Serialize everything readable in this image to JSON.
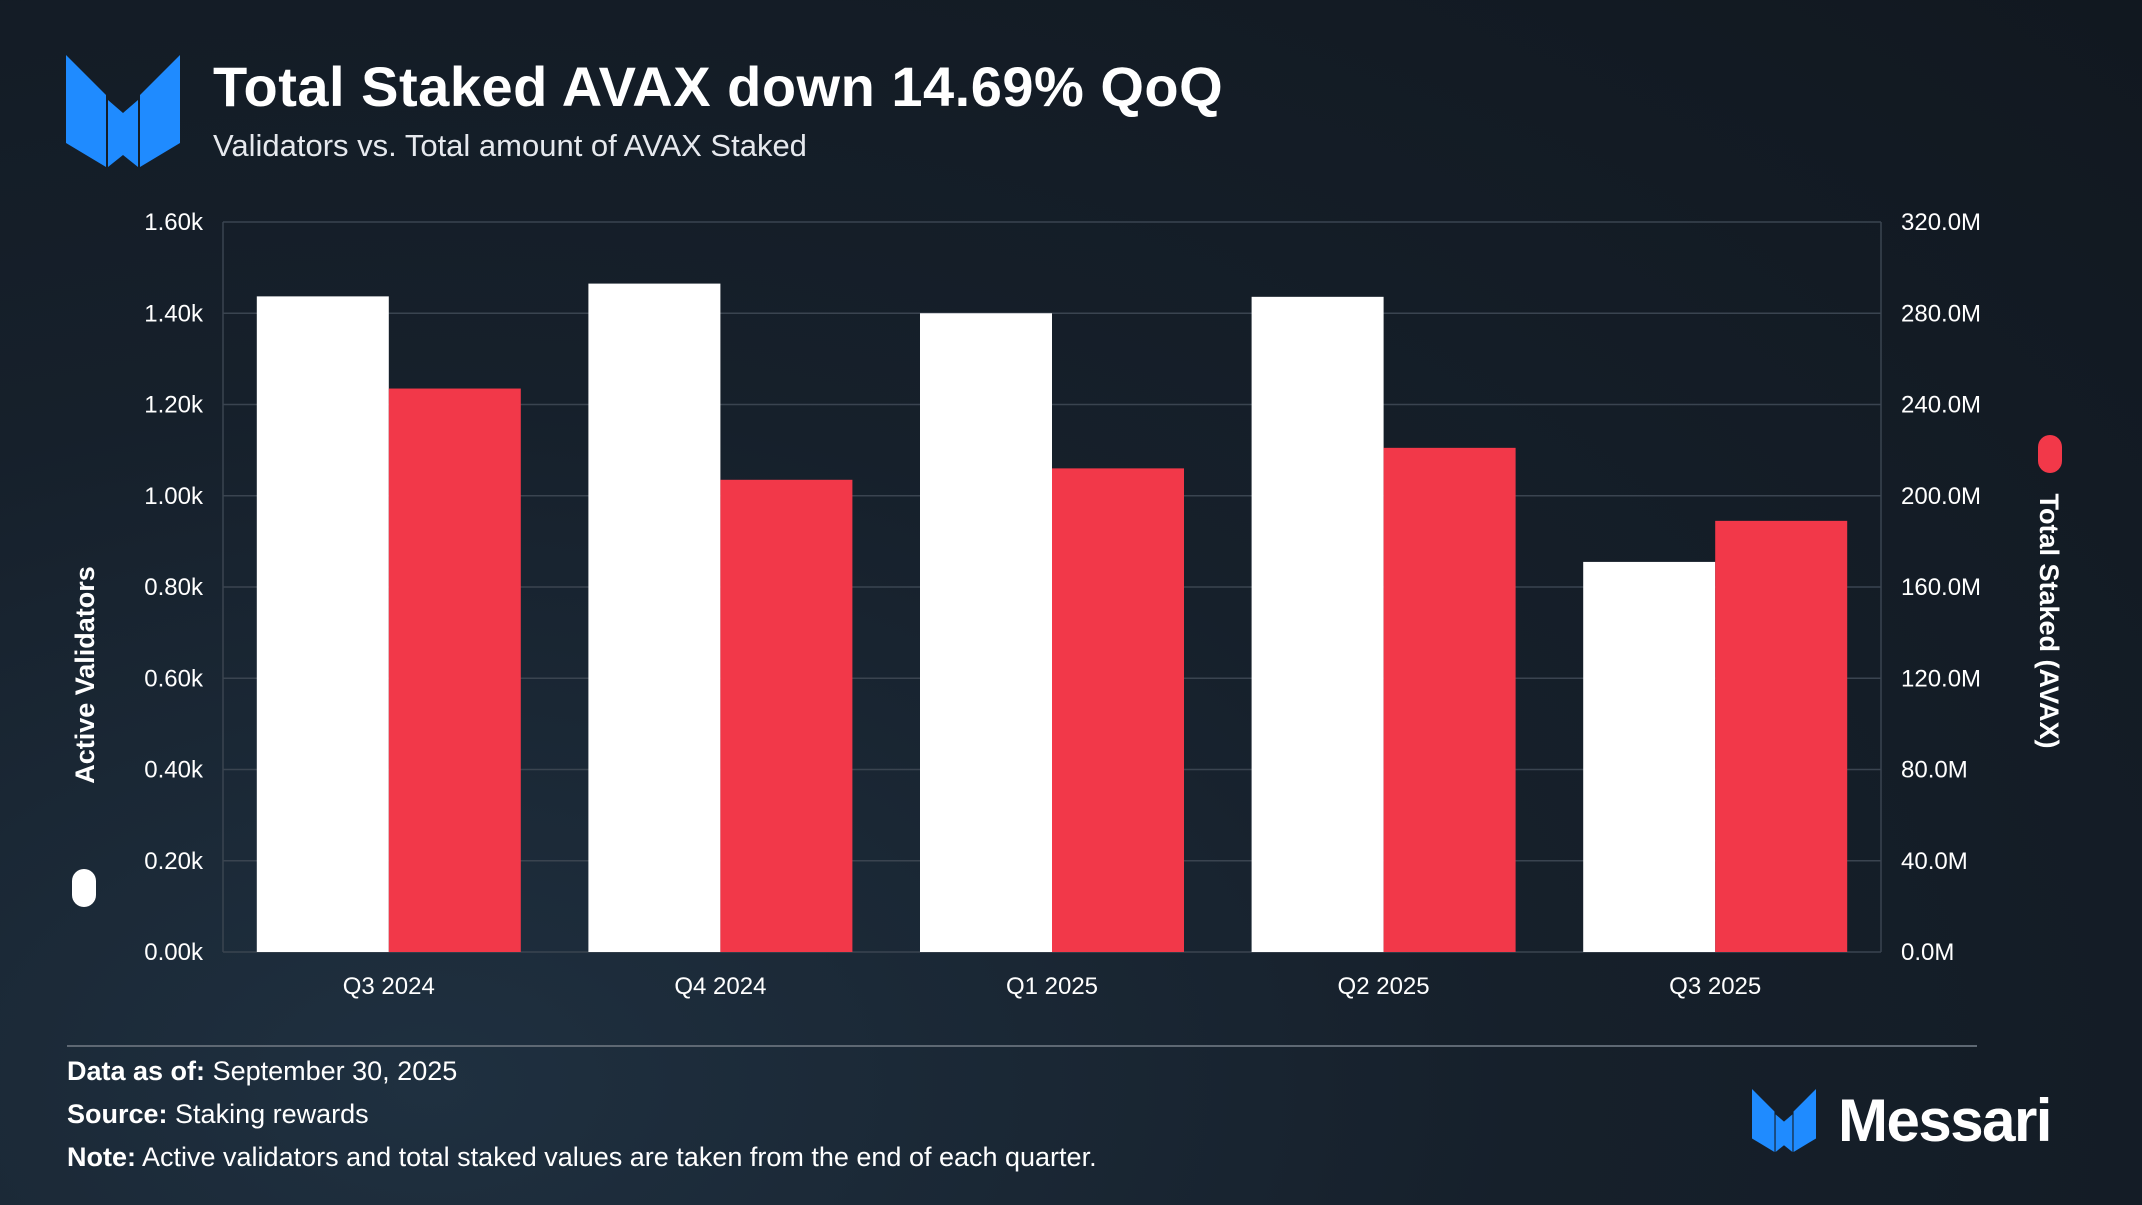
{
  "header": {
    "title": "Total Staked AVAX down 14.69% QoQ",
    "subtitle": "Validators vs. Total amount of AVAX Staked",
    "logo_icon": "messari-m-icon"
  },
  "colors": {
    "validators": "#ffffff",
    "staked": "#f23849",
    "accent_blue": "#1f8bff",
    "grid": "#3a4450"
  },
  "chart_data": {
    "type": "bar",
    "title": "Total Staked AVAX down 14.69% QoQ",
    "subtitle": "Validators vs. Total amount of AVAX Staked",
    "categories": [
      "Q3 2024",
      "Q4 2024",
      "Q1 2025",
      "Q2 2025",
      "Q3 2025"
    ],
    "series": [
      {
        "name": "Active Validators",
        "axis": "left",
        "color": "#ffffff",
        "values": [
          1437,
          1465,
          1400,
          1436,
          855
        ]
      },
      {
        "name": "Total Staked (AVAX)",
        "axis": "right",
        "color": "#f23849",
        "values": [
          247000000,
          207000000,
          212000000,
          221000000,
          189000000
        ]
      }
    ],
    "left_axis": {
      "label": "Active Validators",
      "ylim": [
        0,
        1600
      ],
      "ticks": [
        0,
        200,
        400,
        600,
        800,
        1000,
        1200,
        1400,
        1600
      ],
      "tick_labels": [
        "0.00k",
        "0.20k",
        "0.40k",
        "0.60k",
        "0.80k",
        "1.00k",
        "1.20k",
        "1.40k",
        "1.60k"
      ]
    },
    "right_axis": {
      "label": "Total Staked (AVAX)",
      "ylim": [
        0,
        320000000
      ],
      "ticks": [
        0,
        40000000,
        80000000,
        120000000,
        160000000,
        200000000,
        240000000,
        280000000,
        320000000
      ],
      "tick_labels": [
        "0.0M",
        "40.0M",
        "80.0M",
        "120.0M",
        "160.0M",
        "200.0M",
        "240.0M",
        "280.0M",
        "320.0M"
      ]
    },
    "grid": true,
    "legend": "axis-labels"
  },
  "footer": {
    "data_as_of_label": "Data as of:",
    "data_as_of_value": "September 30, 2025",
    "source_label": "Source:",
    "source_value": "Staking rewards",
    "note_label": "Note:",
    "note_value": "Active validators and total staked values are taken from the end of each quarter.",
    "brand_name": "Messari"
  }
}
